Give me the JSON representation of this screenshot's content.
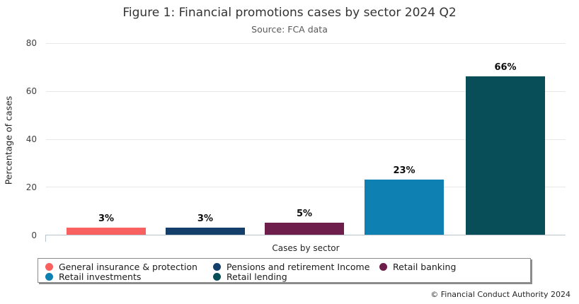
{
  "chart_data": {
    "type": "bar",
    "title": "Figure 1: Financial promotions cases by sector 2024 Q2",
    "subtitle": "Source: FCA data",
    "xlabel": "Cases by sector",
    "ylabel": "Percentage of cases",
    "ylim": [
      0,
      80
    ],
    "y_ticks": [
      0,
      20,
      40,
      60,
      80
    ],
    "grid": true,
    "legend_position": "bottom",
    "categories": [
      "General insurance & protection",
      "Pensions and retirement Income",
      "Retail banking",
      "Retail investments",
      "Retail lending"
    ],
    "values": [
      3,
      3,
      5,
      23,
      66
    ],
    "value_labels": [
      "3%",
      "3%",
      "5%",
      "23%",
      "66%"
    ],
    "colors": [
      "#f8615f",
      "#143f6b",
      "#6e1e4b",
      "#0e80b2",
      "#074e58"
    ]
  },
  "footer": {
    "copyright": "© Financial Conduct Authority 2024"
  },
  "layout_hints": {
    "bar_left_percents": [
      3.95,
      23.02,
      42.1,
      61.31,
      80.79
    ],
    "bar_width_percent": 15.26
  }
}
